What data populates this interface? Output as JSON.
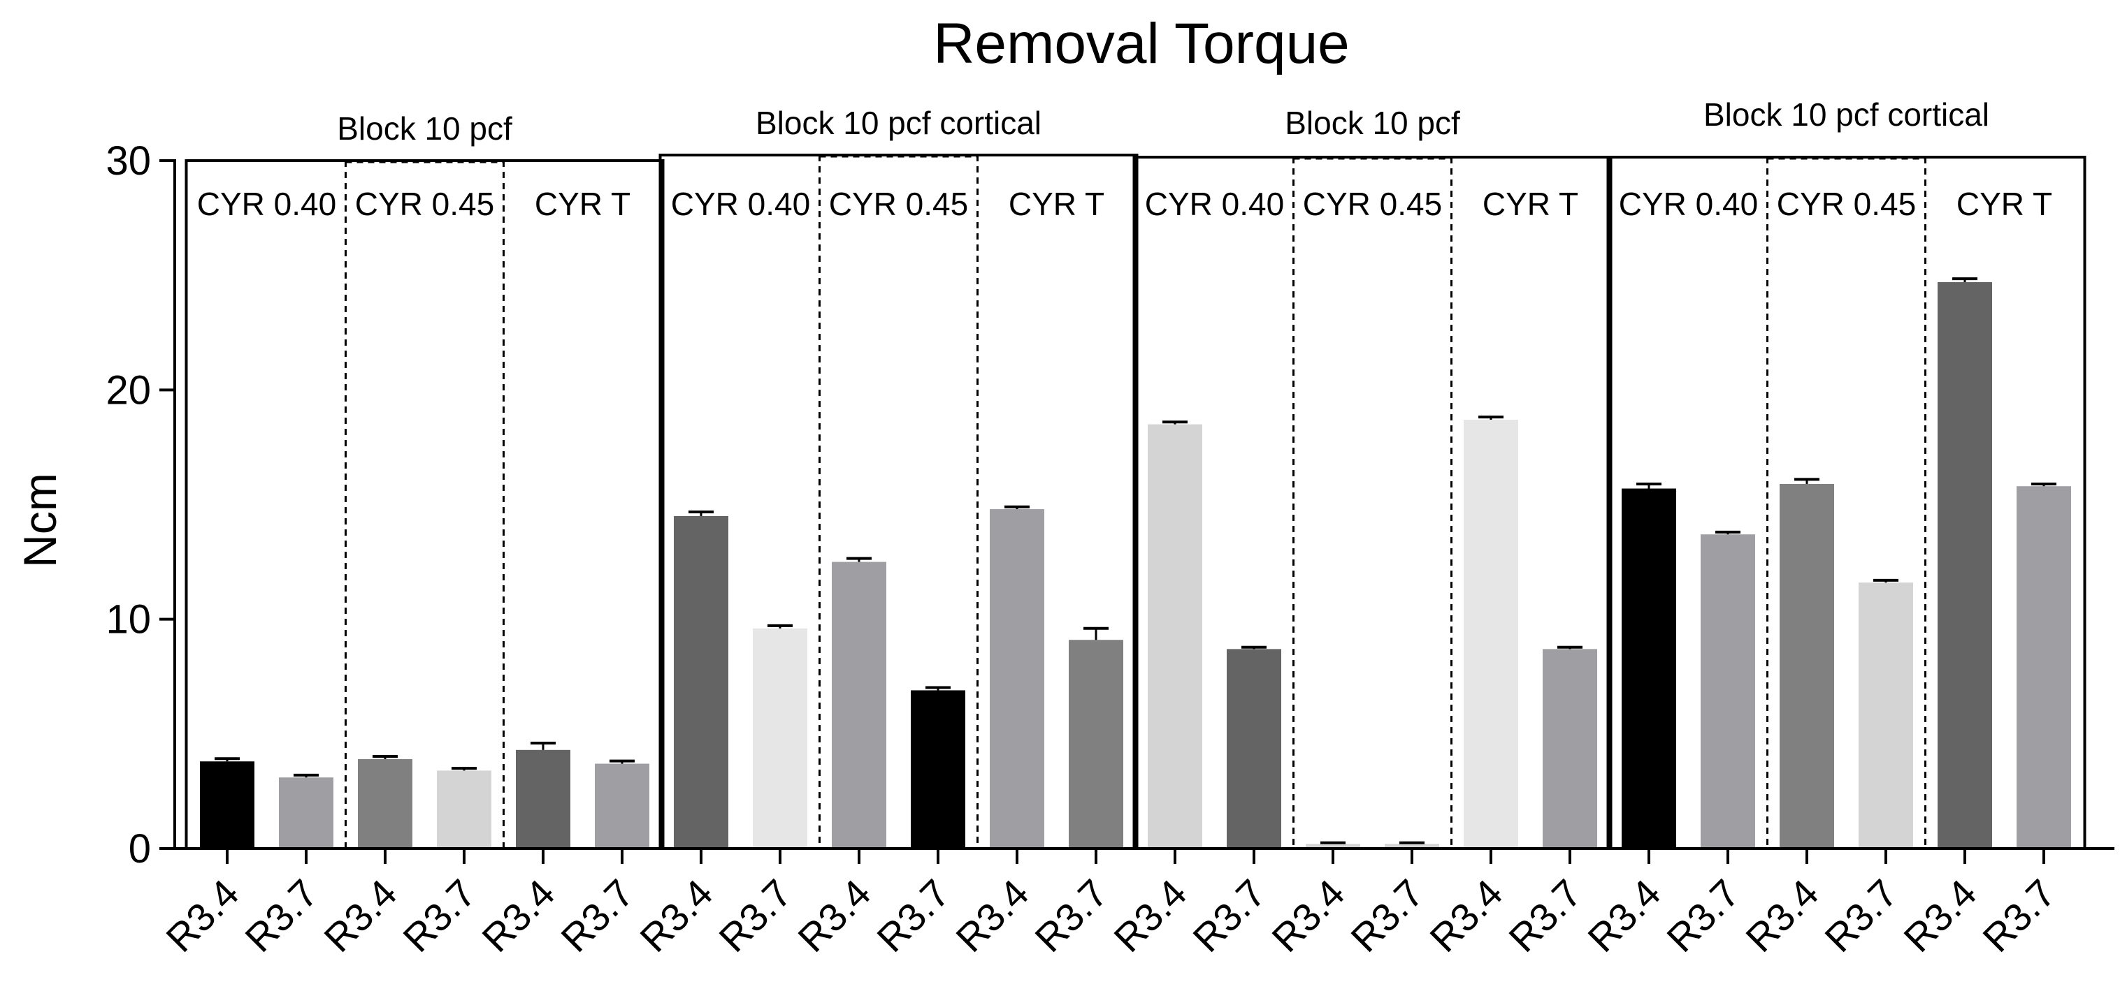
{
  "chart_data": {
    "type": "bar",
    "title": "Removal Torque",
    "xlabel": "",
    "ylabel": "Ncm",
    "ylim": [
      0,
      30
    ],
    "yticks": [
      0,
      10,
      20,
      30
    ],
    "grid": false,
    "error_bars": true,
    "categories": [
      "R3.4",
      "R3.7",
      "R3.4",
      "R3.7",
      "R3.4",
      "R3.7",
      "R3.4",
      "R3.7",
      "R3.4",
      "R3.7",
      "R3.4",
      "R3.7",
      "R3.4",
      "R3.7",
      "R3.4",
      "R3.7",
      "R3.4",
      "R3.7",
      "R3.4",
      "R3.7",
      "R3.4",
      "R3.7",
      "R3.4",
      "R3.7"
    ],
    "values": [
      3.8,
      3.1,
      3.9,
      3.4,
      4.3,
      3.7,
      14.5,
      9.6,
      12.5,
      6.9,
      14.8,
      9.1,
      18.5,
      8.7,
      0.2,
      0.2,
      18.7,
      8.7,
      15.7,
      13.7,
      15.9,
      11.6,
      24.7,
      15.8
    ],
    "errors": [
      0.12,
      0.1,
      0.12,
      0.1,
      0.3,
      0.12,
      0.18,
      0.12,
      0.15,
      0.12,
      0.1,
      0.5,
      0.1,
      0.08,
      0.05,
      0.05,
      0.12,
      0.08,
      0.2,
      0.1,
      0.2,
      0.1,
      0.15,
      0.1
    ],
    "bar_colors": [
      "#000000",
      "#9e9ea3",
      "#808080",
      "#d4d4d4",
      "#646464",
      "#9e9ea3",
      "#646464",
      "#e6e6e6",
      "#9e9ea3",
      "#000000",
      "#9e9ea3",
      "#808080",
      "#d4d4d4",
      "#646464",
      "#d4d4d4",
      "#d4d4d4",
      "#e6e6e6",
      "#9e9ea3",
      "#000000",
      "#9e9ea3",
      "#808080",
      "#d4d4d4",
      "#646464",
      "#9e9ea3"
    ],
    "blocks": [
      {
        "label": "Block 10 pcf",
        "groups": [
          "CYR 0.40",
          "CYR 0.45",
          "CYR T"
        ]
      },
      {
        "label": "Block 10 pcf cortical",
        "groups": [
          "CYR 0.40",
          "CYR 0.45",
          "CYR T"
        ]
      },
      {
        "label": "Block 10 pcf",
        "groups": [
          "CYR 0.40",
          "CYR 0.45",
          "CYR T"
        ]
      },
      {
        "label": "Block 10 pcf cortical",
        "groups": [
          "CYR 0.40",
          "CYR 0.45",
          "CYR T"
        ]
      }
    ]
  }
}
